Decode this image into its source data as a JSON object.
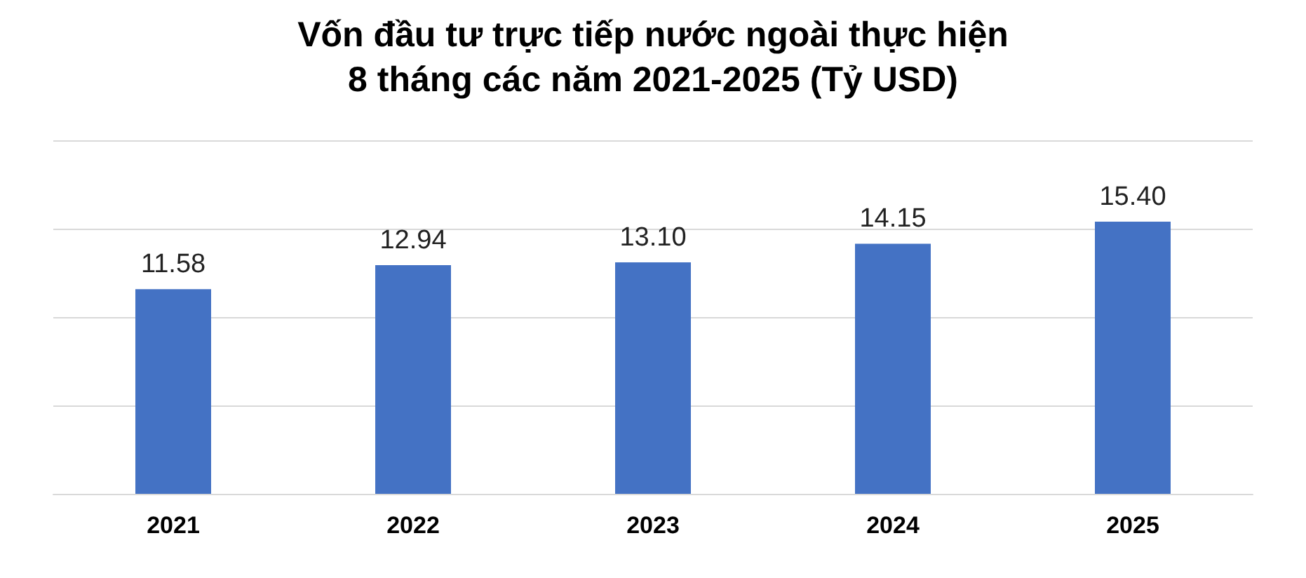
{
  "chart_data": {
    "type": "bar",
    "title": "Vốn đầu tư trực tiếp nước ngoài thực hiện\n8 tháng các năm 2021-2025 (Tỷ USD)",
    "categories": [
      "2021",
      "2022",
      "2023",
      "2024",
      "2025"
    ],
    "values": [
      11.58,
      12.94,
      13.1,
      14.15,
      15.4
    ],
    "value_labels": [
      "11.58",
      "12.94",
      "13.10",
      "14.15",
      "15.40"
    ],
    "color": "#4472c4",
    "ylim": [
      0,
      20
    ],
    "yticks": [
      {
        "value": 0,
        "label": null
      },
      {
        "value": 5,
        "label": null
      },
      {
        "value": 10,
        "label": null
      },
      {
        "value": 15,
        "label": null
      },
      {
        "value": 20,
        "label": null
      }
    ],
    "tick_labels": "x",
    "grid": "y"
  }
}
